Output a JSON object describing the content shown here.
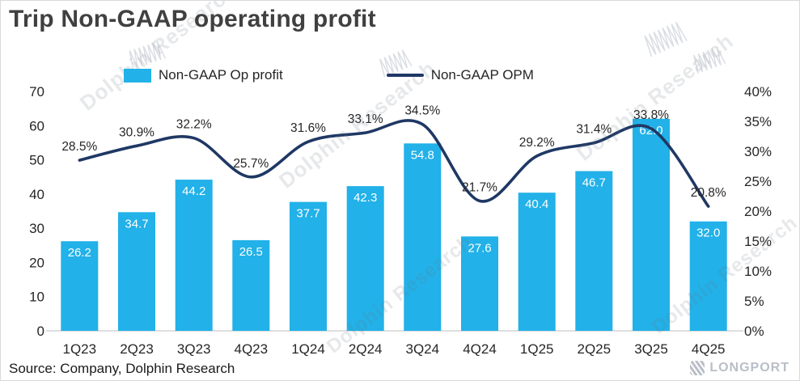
{
  "title": "Trip Non-GAAP operating profit",
  "source": "Source: Company, Dolphin Research",
  "watermark": {
    "text": "Dolphin Research"
  },
  "brand": {
    "name": "LONGPORT"
  },
  "legend": [
    {
      "label": "Non-GAAP Op profit",
      "color": "#22B1E8",
      "type": "bar"
    },
    {
      "label": "Non-GAAP OPM",
      "color": "#1F3864",
      "type": "line"
    }
  ],
  "chart_data": {
    "type": "bar",
    "title": "Trip Non-GAAP operating profit",
    "categories": [
      "1Q23",
      "2Q23",
      "3Q23",
      "4Q23",
      "1Q24",
      "2Q24",
      "3Q24",
      "4Q24",
      "1Q25",
      "2Q25",
      "3Q25",
      "4Q25"
    ],
    "series": [
      {
        "name": "Non-GAAP Op profit",
        "type": "bar",
        "axis": "left",
        "color": "#22B1E8",
        "label_color": "#ffffff",
        "values": [
          26.2,
          34.7,
          44.2,
          26.5,
          37.7,
          42.3,
          54.8,
          27.6,
          40.4,
          46.7,
          62.0,
          32.0
        ]
      },
      {
        "name": "Non-GAAP OPM",
        "type": "line",
        "axis": "right",
        "color": "#1F3864",
        "label_color": "#262626",
        "values": [
          28.5,
          30.9,
          32.2,
          25.7,
          31.6,
          33.1,
          34.5,
          21.7,
          29.2,
          31.4,
          33.8,
          20.8
        ],
        "label_suffix": "%"
      }
    ],
    "left_axis": {
      "min": 0,
      "max": 70,
      "ticks": [
        "70",
        "60",
        "50",
        "40",
        "30",
        "20",
        "10",
        "0"
      ]
    },
    "right_axis": {
      "min": 0,
      "max": 40,
      "ticks": [
        "40%",
        "35%",
        "30%",
        "25%",
        "20%",
        "15%",
        "10%",
        "5%",
        "0%"
      ]
    },
    "grid": false,
    "legend_position": "top"
  }
}
